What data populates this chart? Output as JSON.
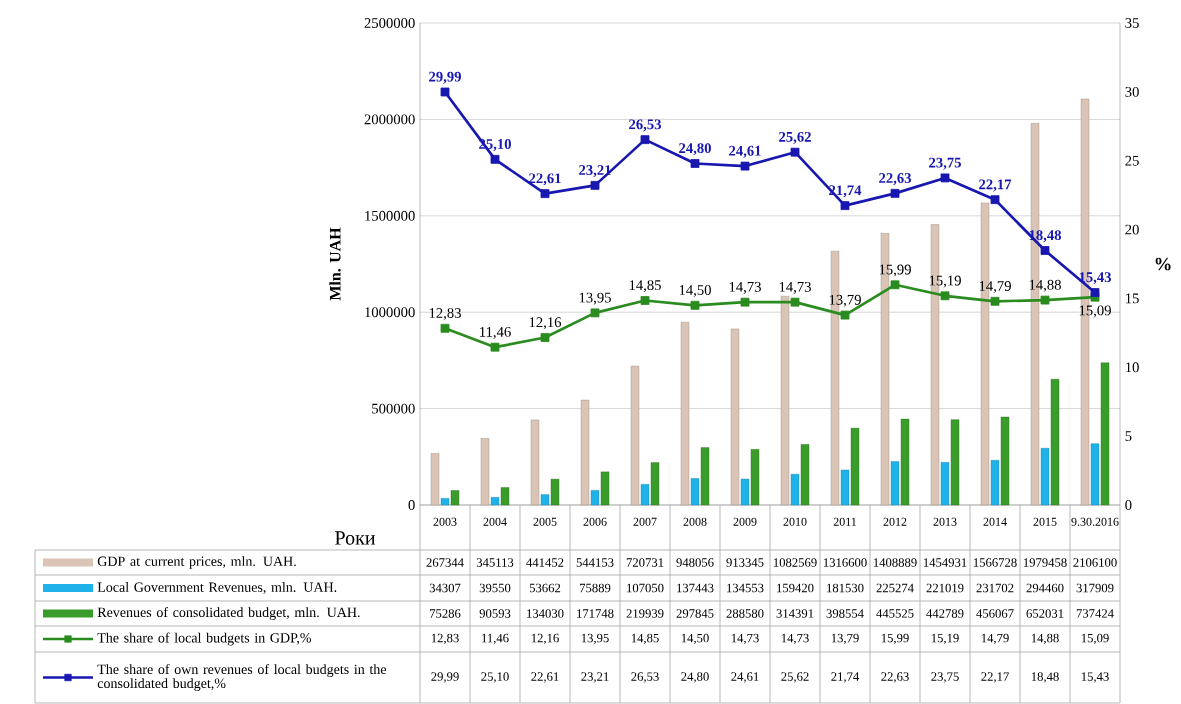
{
  "chart_data": {
    "type": "bar",
    "xlabel": "Роки",
    "ylabel": "Mln. UAH",
    "y2label": "%",
    "categories": [
      "2003",
      "2004",
      "2005",
      "2006",
      "2007",
      "2008",
      "2009",
      "2010",
      "2011",
      "2012",
      "2013",
      "2014",
      "2015",
      "9.30.2016"
    ],
    "ylim": [
      0,
      2500000
    ],
    "yticks": [
      0,
      500000,
      1000000,
      1500000,
      2000000,
      2500000
    ],
    "y2lim": [
      0,
      35
    ],
    "y2ticks": [
      0,
      5,
      10,
      15,
      20,
      25,
      30,
      35
    ],
    "grid": "y",
    "legend": "bottom",
    "series": [
      {
        "name": "GDP at current prices, mln. UAH.",
        "color": "#d9c4b6",
        "values": [
          267344,
          345113,
          441452,
          544153,
          720731,
          948056,
          913345,
          1082569,
          1316600,
          1408889,
          1454931,
          1566728,
          1979458,
          2106100
        ],
        "value_labels": [
          "267344",
          "345113",
          "441452",
          "544153",
          "720731",
          "948056",
          "913345",
          "1082569",
          "1316600",
          "1408889",
          "1454931",
          "1566728",
          "1979458",
          "2106100"
        ]
      },
      {
        "name": "Local Government Revenues, mln. UAH.",
        "color": "#1fb2e8",
        "values": [
          34307,
          39550,
          53662,
          75889,
          107050,
          137443,
          134553,
          159420,
          181530,
          225274,
          221019,
          231702,
          294460,
          317909
        ],
        "value_labels": [
          "34307",
          "39550",
          "53662",
          "75889",
          "107050",
          "137443",
          "134553",
          "159420",
          "181530",
          "225274",
          "221019",
          "231702",
          "294460",
          "317909"
        ]
      },
      {
        "name": "Revenues of consolidated budget, mln. UAH.",
        "color": "#3a9c2a",
        "values": [
          75286,
          90593,
          134030,
          171748,
          219939,
          297845,
          288580,
          314391,
          398554,
          445525,
          442789,
          456067,
          652031,
          737424
        ],
        "value_labels": [
          "75286",
          "90593",
          "134030",
          "171748",
          "219939",
          "297845",
          "288580",
          "314391",
          "398554",
          "445525",
          "442789",
          "456067",
          "652031",
          "737424"
        ]
      },
      {
        "name": "The share of local budgets in GDP,%",
        "type": "line",
        "axis": "y2",
        "marker": "square",
        "color": "#2a8c1e",
        "values": [
          12.83,
          11.46,
          12.16,
          13.95,
          14.85,
          14.5,
          14.73,
          14.73,
          13.79,
          15.99,
          15.19,
          14.79,
          14.88,
          15.09
        ],
        "value_labels": [
          "12,83",
          "11,46",
          "12,16",
          "13,95",
          "14,85",
          "14,50",
          "14,73",
          "14,73",
          "13,79",
          "15,99",
          "15,19",
          "14,79",
          "14,88",
          "15,09"
        ]
      },
      {
        "name": "The share of own revenues of local budgets in the consolidated budget,%",
        "type": "line",
        "axis": "y2",
        "marker": "square",
        "color": "#1818b0",
        "values": [
          29.99,
          25.1,
          22.61,
          23.21,
          26.53,
          24.8,
          24.61,
          25.62,
          21.74,
          22.63,
          23.75,
          22.17,
          18.48,
          15.43
        ],
        "value_labels": [
          "29,99",
          "25,10",
          "22,61",
          "23,21",
          "26,53",
          "24,80",
          "24,61",
          "25,62",
          "21,74",
          "22,63",
          "23,75",
          "22,17",
          "18,48",
          "15,43"
        ]
      }
    ]
  }
}
